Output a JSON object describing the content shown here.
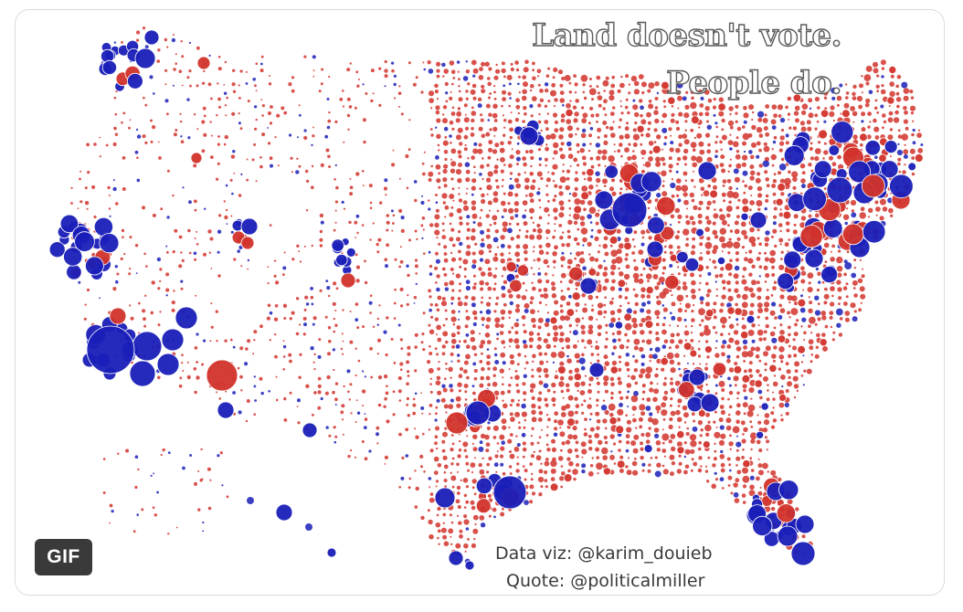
{
  "media": {
    "headline_line1": "Land doesn't vote.",
    "headline_line2": "People do.",
    "credit_data_viz": "Data viz: @karim_douieb",
    "credit_quote": "Quote: @politicalmiller",
    "badge": "GIF"
  },
  "map": {
    "type": "bubble map of U.S. counties",
    "colors": {
      "republican": "#d2332b",
      "democratic": "#1a1fb8",
      "background": "#ffffff"
    }
  }
}
